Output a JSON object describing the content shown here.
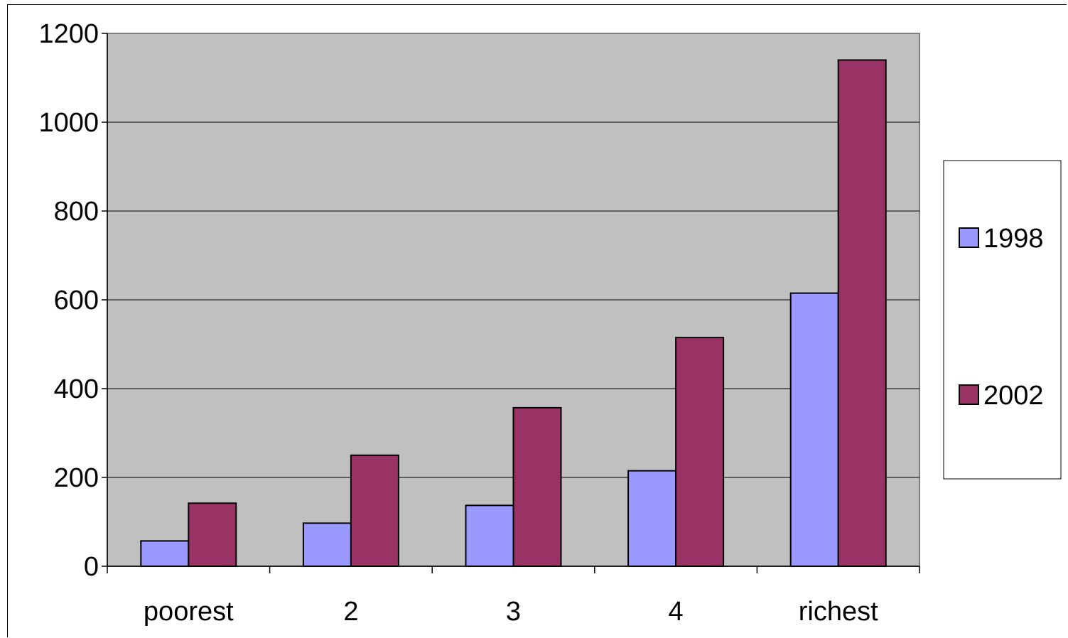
{
  "chart_data": {
    "type": "bar",
    "categories": [
      "poorest",
      "2",
      "3",
      "4",
      "richest"
    ],
    "series": [
      {
        "name": "1998",
        "color": "#9999ff",
        "values": [
          57,
          97,
          137,
          215,
          615
        ]
      },
      {
        "name": "2002",
        "color": "#993366",
        "values": [
          142,
          250,
          357,
          515,
          1140
        ]
      }
    ],
    "ylim": [
      0,
      1200
    ],
    "yticks": [
      0,
      200,
      400,
      600,
      800,
      1000,
      1200
    ],
    "grid": true,
    "legend_position": "right",
    "plot_background": "#c0c0c0"
  }
}
